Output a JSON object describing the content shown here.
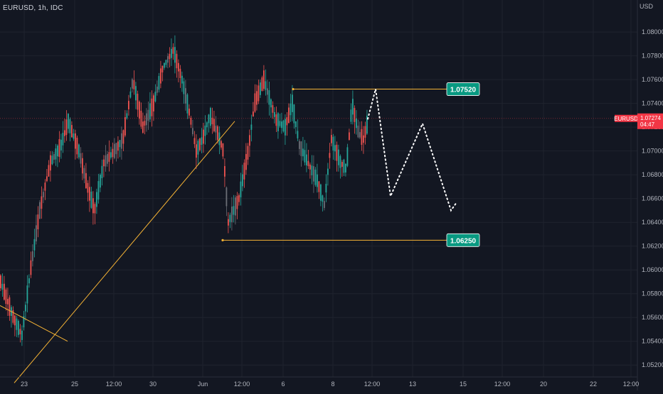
{
  "header": {
    "symbol": "EURUSD, 1h, IDC"
  },
  "theme": {
    "background": "#131722",
    "grid": "#1f232e",
    "up": "#26a69a",
    "down": "#ef5350",
    "neutral": "#6b6e76",
    "trendline": "#f5b335",
    "projection": "#ffffff",
    "level_tag": "#089981",
    "current_tag": "#f23645"
  },
  "chart_data": {
    "type": "candlestick",
    "title": "EURUSD, 1h, IDC",
    "currency_label": "USD",
    "grid": true,
    "x_ticks": [
      "23",
      "25",
      "12:00",
      "30",
      "Jun",
      "12:00",
      "6",
      "8",
      "12:00",
      "13",
      "15",
      "12:00",
      "20",
      "22",
      "12:00"
    ],
    "y_range": [
      1.051,
      1.0815
    ],
    "y_ticks": [
      "1.08000",
      "1.07800",
      "1.07600",
      "1.07400",
      "1.07200",
      "1.07000",
      "1.06800",
      "1.06600",
      "1.06400",
      "1.06200",
      "1.06000",
      "1.05800",
      "1.05600",
      "1.05400",
      "1.05200"
    ],
    "current_price": {
      "symbol": "EURUSD",
      "price": "1.07274",
      "countdown": "04:47"
    },
    "levels": [
      {
        "label": "1.07520",
        "price": 1.0752
      },
      {
        "label": "1.06250",
        "price": 1.0625
      }
    ],
    "price_path": [
      [
        0,
        1.059
      ],
      [
        18,
        1.056
      ],
      [
        30,
        1.0545
      ],
      [
        42,
        1.06
      ],
      [
        55,
        1.065
      ],
      [
        70,
        1.069
      ],
      [
        85,
        1.0705
      ],
      [
        95,
        1.0725
      ],
      [
        110,
        1.07
      ],
      [
        122,
        1.067
      ],
      [
        132,
        1.065
      ],
      [
        145,
        1.069
      ],
      [
        160,
        1.07
      ],
      [
        172,
        1.071
      ],
      [
        186,
        1.076
      ],
      [
        200,
        1.072
      ],
      [
        215,
        1.074
      ],
      [
        228,
        1.077
      ],
      [
        243,
        1.0785
      ],
      [
        255,
        1.076
      ],
      [
        266,
        1.073
      ],
      [
        275,
        1.07
      ],
      [
        284,
        1.071
      ],
      [
        294,
        1.073
      ],
      [
        305,
        1.0715
      ],
      [
        313,
        1.07
      ],
      [
        320,
        1.064
      ],
      [
        335,
        1.066
      ],
      [
        348,
        1.07
      ],
      [
        357,
        1.074
      ],
      [
        370,
        1.076
      ],
      [
        380,
        1.074
      ],
      [
        388,
        1.0725
      ],
      [
        400,
        1.072
      ],
      [
        410,
        1.074
      ],
      [
        420,
        1.0705
      ],
      [
        432,
        1.069
      ],
      [
        445,
        1.0675
      ],
      [
        455,
        1.0655
      ],
      [
        465,
        1.071
      ],
      [
        478,
        1.069
      ],
      [
        486,
        1.0685
      ],
      [
        494,
        1.074
      ],
      [
        503,
        1.0715
      ],
      [
        510,
        1.071
      ],
      [
        517,
        1.0727
      ]
    ],
    "projection_path": [
      [
        517,
        1.0727
      ],
      [
        528,
        1.0752
      ],
      [
        549,
        1.0662
      ],
      [
        594,
        1.0723
      ],
      [
        634,
        1.065
      ],
      [
        641,
        1.0656
      ]
    ],
    "trendlines": [
      [
        [
          20,
          1.0505
        ],
        [
          330,
          1.0725
        ]
      ],
      [
        [
          0,
          1.057
        ],
        [
          95,
          1.054
        ]
      ]
    ]
  }
}
